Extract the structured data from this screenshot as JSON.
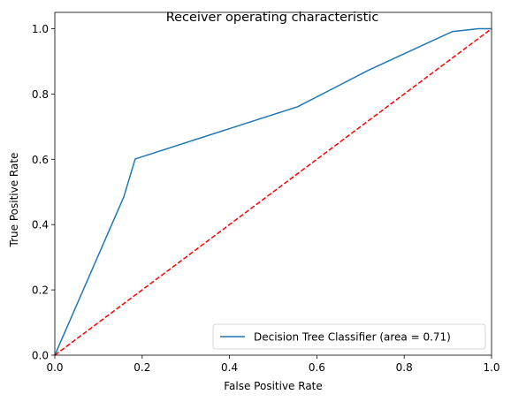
{
  "chart_data": {
    "type": "line",
    "title": "Receiver operating characteristic",
    "xlabel": "False Positive Rate",
    "ylabel": "True Positive Rate",
    "xlim": [
      0.0,
      1.0
    ],
    "ylim": [
      0.0,
      1.05
    ],
    "xticks": [
      0.0,
      0.2,
      0.4,
      0.6,
      0.8,
      1.0
    ],
    "yticks": [
      0.0,
      0.2,
      0.4,
      0.6,
      0.8,
      1.0
    ],
    "xtick_labels": [
      "0.0",
      "0.2",
      "0.4",
      "0.6",
      "0.8",
      "1.0"
    ],
    "ytick_labels": [
      "0.0",
      "0.2",
      "0.4",
      "0.6",
      "0.8",
      "1.0"
    ],
    "grid": false,
    "legend_position": "lower-right",
    "series": [
      {
        "name": "Decision Tree Classifier (area = 0.71)",
        "color": "#1f77b4",
        "style": "solid",
        "x": [
          0.0,
          0.158,
          0.184,
          0.556,
          0.72,
          0.91,
          0.97,
          1.0
        ],
        "y": [
          0.0,
          0.485,
          0.601,
          0.761,
          0.874,
          0.991,
          1.0,
          1.0
        ]
      },
      {
        "name": "",
        "color": "#ff0000",
        "style": "dashed",
        "x": [
          0.0,
          1.0
        ],
        "y": [
          0.0,
          1.0
        ]
      }
    ]
  }
}
